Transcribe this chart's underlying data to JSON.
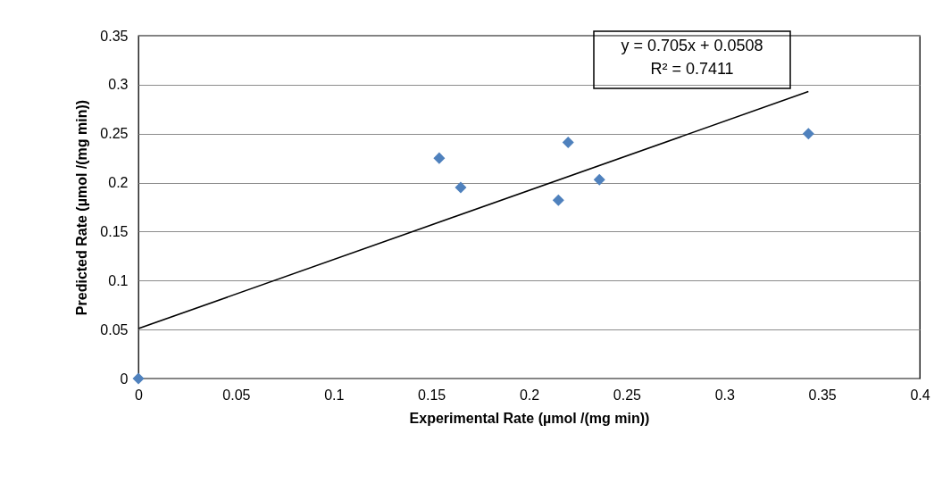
{
  "chart_data": {
    "type": "scatter",
    "xlabel": "Experimental Rate (µmol /(mg min))",
    "ylabel": "Predicted Rate (µmol /(mg min))",
    "xlim": [
      0,
      0.4
    ],
    "xticks": [
      0,
      0.05,
      0.1,
      0.15,
      0.2,
      0.25,
      0.3,
      0.35,
      0.4
    ],
    "ylim": [
      0,
      0.35
    ],
    "yticks": [
      0,
      0.05,
      0.1,
      0.15,
      0.2,
      0.25,
      0.3,
      0.35
    ],
    "grid": "y",
    "marker": "diamond",
    "annotations": [
      "y = 0.705x + 0.0508",
      "R² = 0.7411"
    ],
    "series": [
      {
        "color": "#4f81bd",
        "x": [
          0,
          0.154,
          0.165,
          0.215,
          0.22,
          0.236,
          0.343
        ],
        "values": [
          0,
          0.225,
          0.195,
          0.182,
          0.241,
          0.203,
          0.25
        ]
      },
      {
        "type": "line",
        "marker": "none",
        "color": "#000000",
        "x": [
          0,
          0.343
        ],
        "values": [
          0.051,
          0.293
        ]
      }
    ]
  }
}
